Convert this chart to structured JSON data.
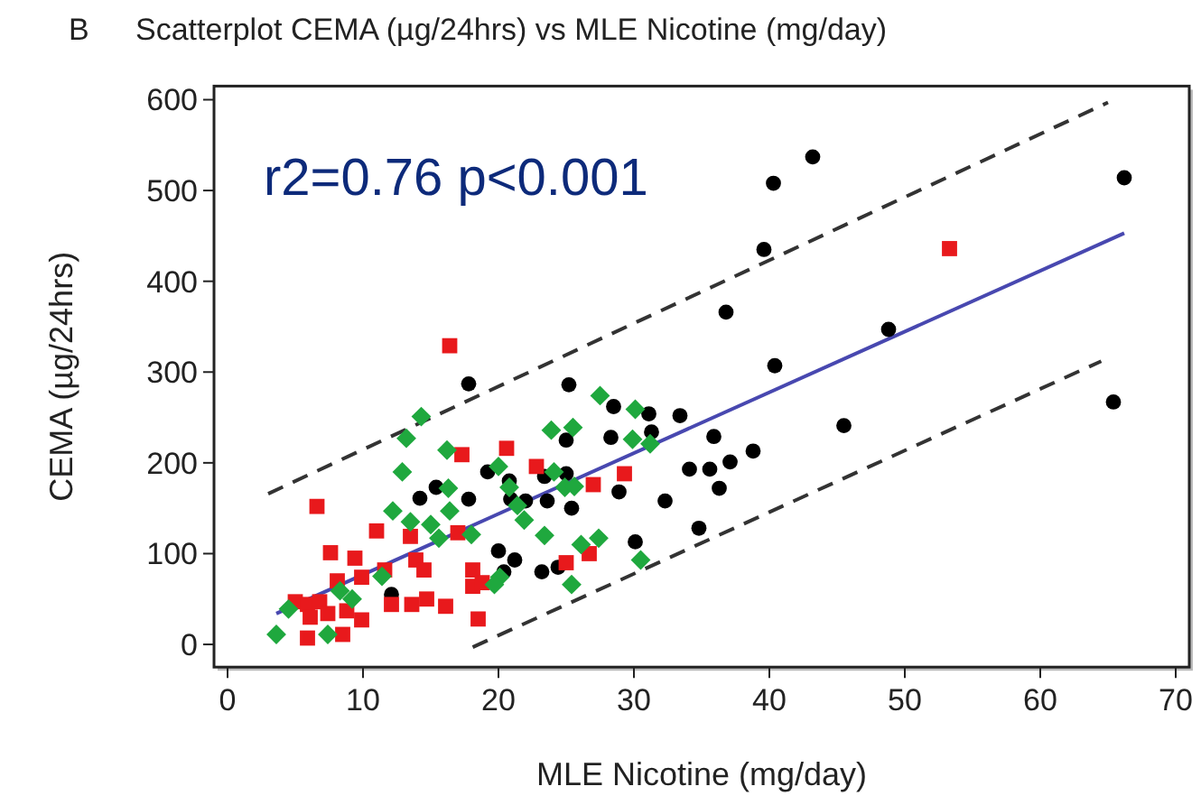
{
  "chart_data": {
    "type": "scatter",
    "title": "Scatterplot CEMA (µg/24hrs) vs MLE Nicotine (mg/day)",
    "xlabel": "MLE Nicotine (mg/day)",
    "ylabel": "CEMA (µg/24hrs)",
    "annotations": [
      "B",
      "r2=0.76 p<0.001"
    ],
    "xlim": [
      -1,
      71
    ],
    "ylim": [
      -25,
      615
    ],
    "xticks": [
      0,
      10,
      20,
      30,
      40,
      50,
      60,
      70
    ],
    "yticks": [
      0,
      100,
      200,
      300,
      400,
      500,
      600
    ],
    "grid": false,
    "series": [
      {
        "type": "line",
        "color": "#333333",
        "line_style": "dashed",
        "marker": "none",
        "x": [
          3,
          65
        ],
        "values": [
          166,
          597
        ]
      },
      {
        "type": "line",
        "color": "#333333",
        "line_style": "dashed",
        "marker": "none",
        "x": [
          18.1,
          64.5
        ],
        "values": [
          -3,
          312
        ]
      },
      {
        "type": "line",
        "color": "#4848b0",
        "line_style": "solid",
        "marker": "none",
        "x": [
          3.6,
          66.2
        ],
        "values": [
          34,
          453
        ]
      },
      {
        "color": "#000000",
        "marker": "circle",
        "x": [
          40.3,
          43.2,
          66.2,
          39.6,
          36.8,
          40.4,
          48.8,
          65.4,
          45.5,
          35.9,
          38.8,
          37.1,
          35.6,
          34.1,
          36.3,
          34.8,
          17.8,
          25.2,
          28.5,
          31.1,
          33.4,
          28.3,
          25.0,
          31.3,
          32.3,
          28.9,
          25.0,
          23.4,
          19.2,
          20.8,
          15.4,
          14.2,
          22.0,
          20.9,
          23.6,
          17.8,
          25.4,
          30.1,
          20.0,
          21.2,
          23.2,
          24.4,
          20.4,
          12.1
        ],
        "values": [
          508,
          537,
          514,
          435,
          366,
          307,
          347,
          267,
          241,
          229,
          213,
          201,
          193,
          193,
          172,
          128,
          287,
          286,
          262,
          254,
          252,
          228,
          225,
          234,
          158,
          168,
          188,
          185,
          190,
          180,
          173,
          161,
          158,
          160,
          158,
          160,
          150,
          113,
          103,
          93,
          80,
          85,
          80,
          55
        ]
      },
      {
        "color": "#e8191c",
        "marker": "square",
        "x": [
          16.4,
          20.6,
          17.3,
          22.8,
          29.3,
          27.0,
          6.6,
          11.0,
          13.5,
          17.0,
          7.6,
          9.4,
          13.9,
          14.5,
          8.1,
          9.9,
          11.6,
          18.1,
          18.1,
          18.8,
          25.0,
          26.7,
          5.0,
          5.9,
          6.8,
          6.1,
          7.4,
          8.8,
          9.9,
          5.9,
          8.5,
          12.1,
          13.6,
          14.7,
          16.1,
          18.5,
          53.3
        ],
        "values": [
          329,
          216,
          209,
          196,
          188,
          176,
          152,
          125,
          119,
          123,
          101,
          95,
          93,
          82,
          70,
          74,
          82,
          82,
          64,
          68,
          90,
          100,
          47,
          44,
          47,
          30,
          34,
          37,
          27,
          7,
          11,
          44,
          44,
          50,
          42,
          28,
          436
        ]
      },
      {
        "color": "#1fa83e",
        "marker": "diamond",
        "x": [
          14.3,
          13.2,
          16.2,
          27.5,
          30.1,
          23.9,
          25.5,
          29.9,
          31.2,
          12.9,
          20.0,
          24.1,
          16.3,
          20.8,
          12.2,
          13.5,
          15.0,
          16.4,
          21.4,
          21.9,
          24.9,
          25.6,
          23.4,
          18.0,
          15.6,
          26.1,
          27.4,
          30.5,
          25.4,
          20.1,
          19.7,
          11.4,
          8.3,
          9.2,
          4.5,
          3.6,
          7.4
        ],
        "values": [
          251,
          227,
          214,
          274,
          259,
          236,
          239,
          226,
          221,
          190,
          196,
          190,
          172,
          173,
          147,
          135,
          132,
          147,
          153,
          137,
          173,
          174,
          120,
          121,
          117,
          110,
          117,
          93,
          66,
          74,
          66,
          75,
          59,
          50,
          39,
          11,
          11
        ]
      }
    ]
  }
}
